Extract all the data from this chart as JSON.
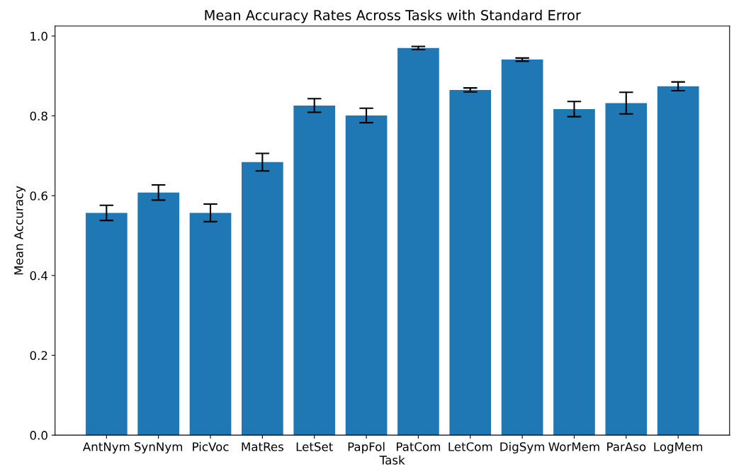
{
  "chart_data": {
    "type": "bar",
    "title": "Mean Accuracy Rates Across Tasks with Standard Error",
    "xlabel": "Task",
    "ylabel": "Mean Accuracy",
    "categories": [
      "AntNym",
      "SynNym",
      "PicVoc",
      "MatRes",
      "LetSet",
      "PapFol",
      "PatCom",
      "LetCom",
      "DigSym",
      "WorMem",
      "ParAso",
      "LogMem"
    ],
    "values": [
      0.557,
      0.608,
      0.557,
      0.684,
      0.826,
      0.801,
      0.97,
      0.865,
      0.941,
      0.817,
      0.832,
      0.874
    ],
    "errors": [
      0.019,
      0.019,
      0.022,
      0.022,
      0.017,
      0.018,
      0.004,
      0.005,
      0.004,
      0.019,
      0.027,
      0.011
    ],
    "color": "#1f77b4",
    "ylim": [
      0,
      1.025
    ],
    "yticks": [
      {
        "value": 0,
        "label": "0.0"
      },
      {
        "value": 0.2,
        "label": "0.2"
      },
      {
        "value": 0.4,
        "label": "0.4"
      },
      {
        "value": 0.6,
        "label": "0.6"
      },
      {
        "value": 0.8,
        "label": "0.8"
      },
      {
        "value": 1.0,
        "label": "1.0"
      }
    ],
    "grid": false,
    "legend": false
  }
}
